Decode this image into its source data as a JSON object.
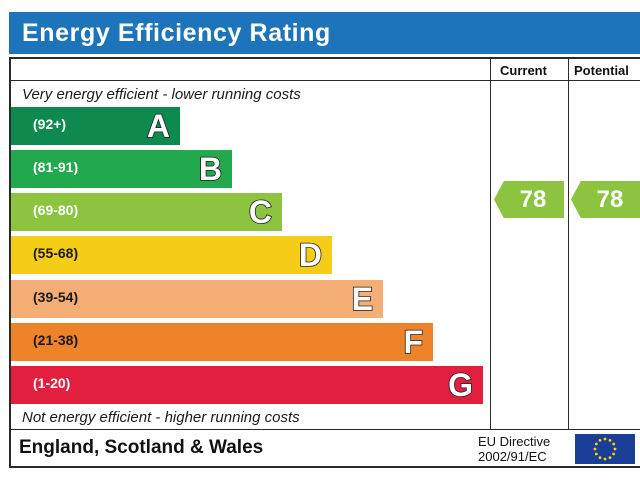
{
  "header": {
    "title": "Energy Efficiency Rating"
  },
  "columns": {
    "current": "Current",
    "potential": "Potential"
  },
  "captions": {
    "top": "Very energy efficient - lower running costs",
    "bottom": "Not energy efficient - higher running costs"
  },
  "bands": [
    {
      "letter": "A",
      "range": "(92+)",
      "color": "#0f8a4e"
    },
    {
      "letter": "B",
      "range": "(81-91)",
      "color": "#23a94d"
    },
    {
      "letter": "C",
      "range": "(69-80)",
      "color": "#8cc43f"
    },
    {
      "letter": "D",
      "range": "(55-68)",
      "color": "#f6cd16"
    },
    {
      "letter": "E",
      "range": "(39-54)",
      "color": "#f4ad74"
    },
    {
      "letter": "F",
      "range": "(21-38)",
      "color": "#ee832a"
    },
    {
      "letter": "G",
      "range": "(1-20)",
      "color": "#e21f3e"
    }
  ],
  "ratings": {
    "current": {
      "value": "78",
      "band": "C",
      "color": "#8cc43f"
    },
    "potential": {
      "value": "78",
      "band": "C",
      "color": "#8cc43f"
    }
  },
  "footer": {
    "region": "England, Scotland & Wales",
    "directive_line1": "EU Directive",
    "directive_line2": "2002/91/EC",
    "flag_icon": "eu-flag-icon"
  }
}
